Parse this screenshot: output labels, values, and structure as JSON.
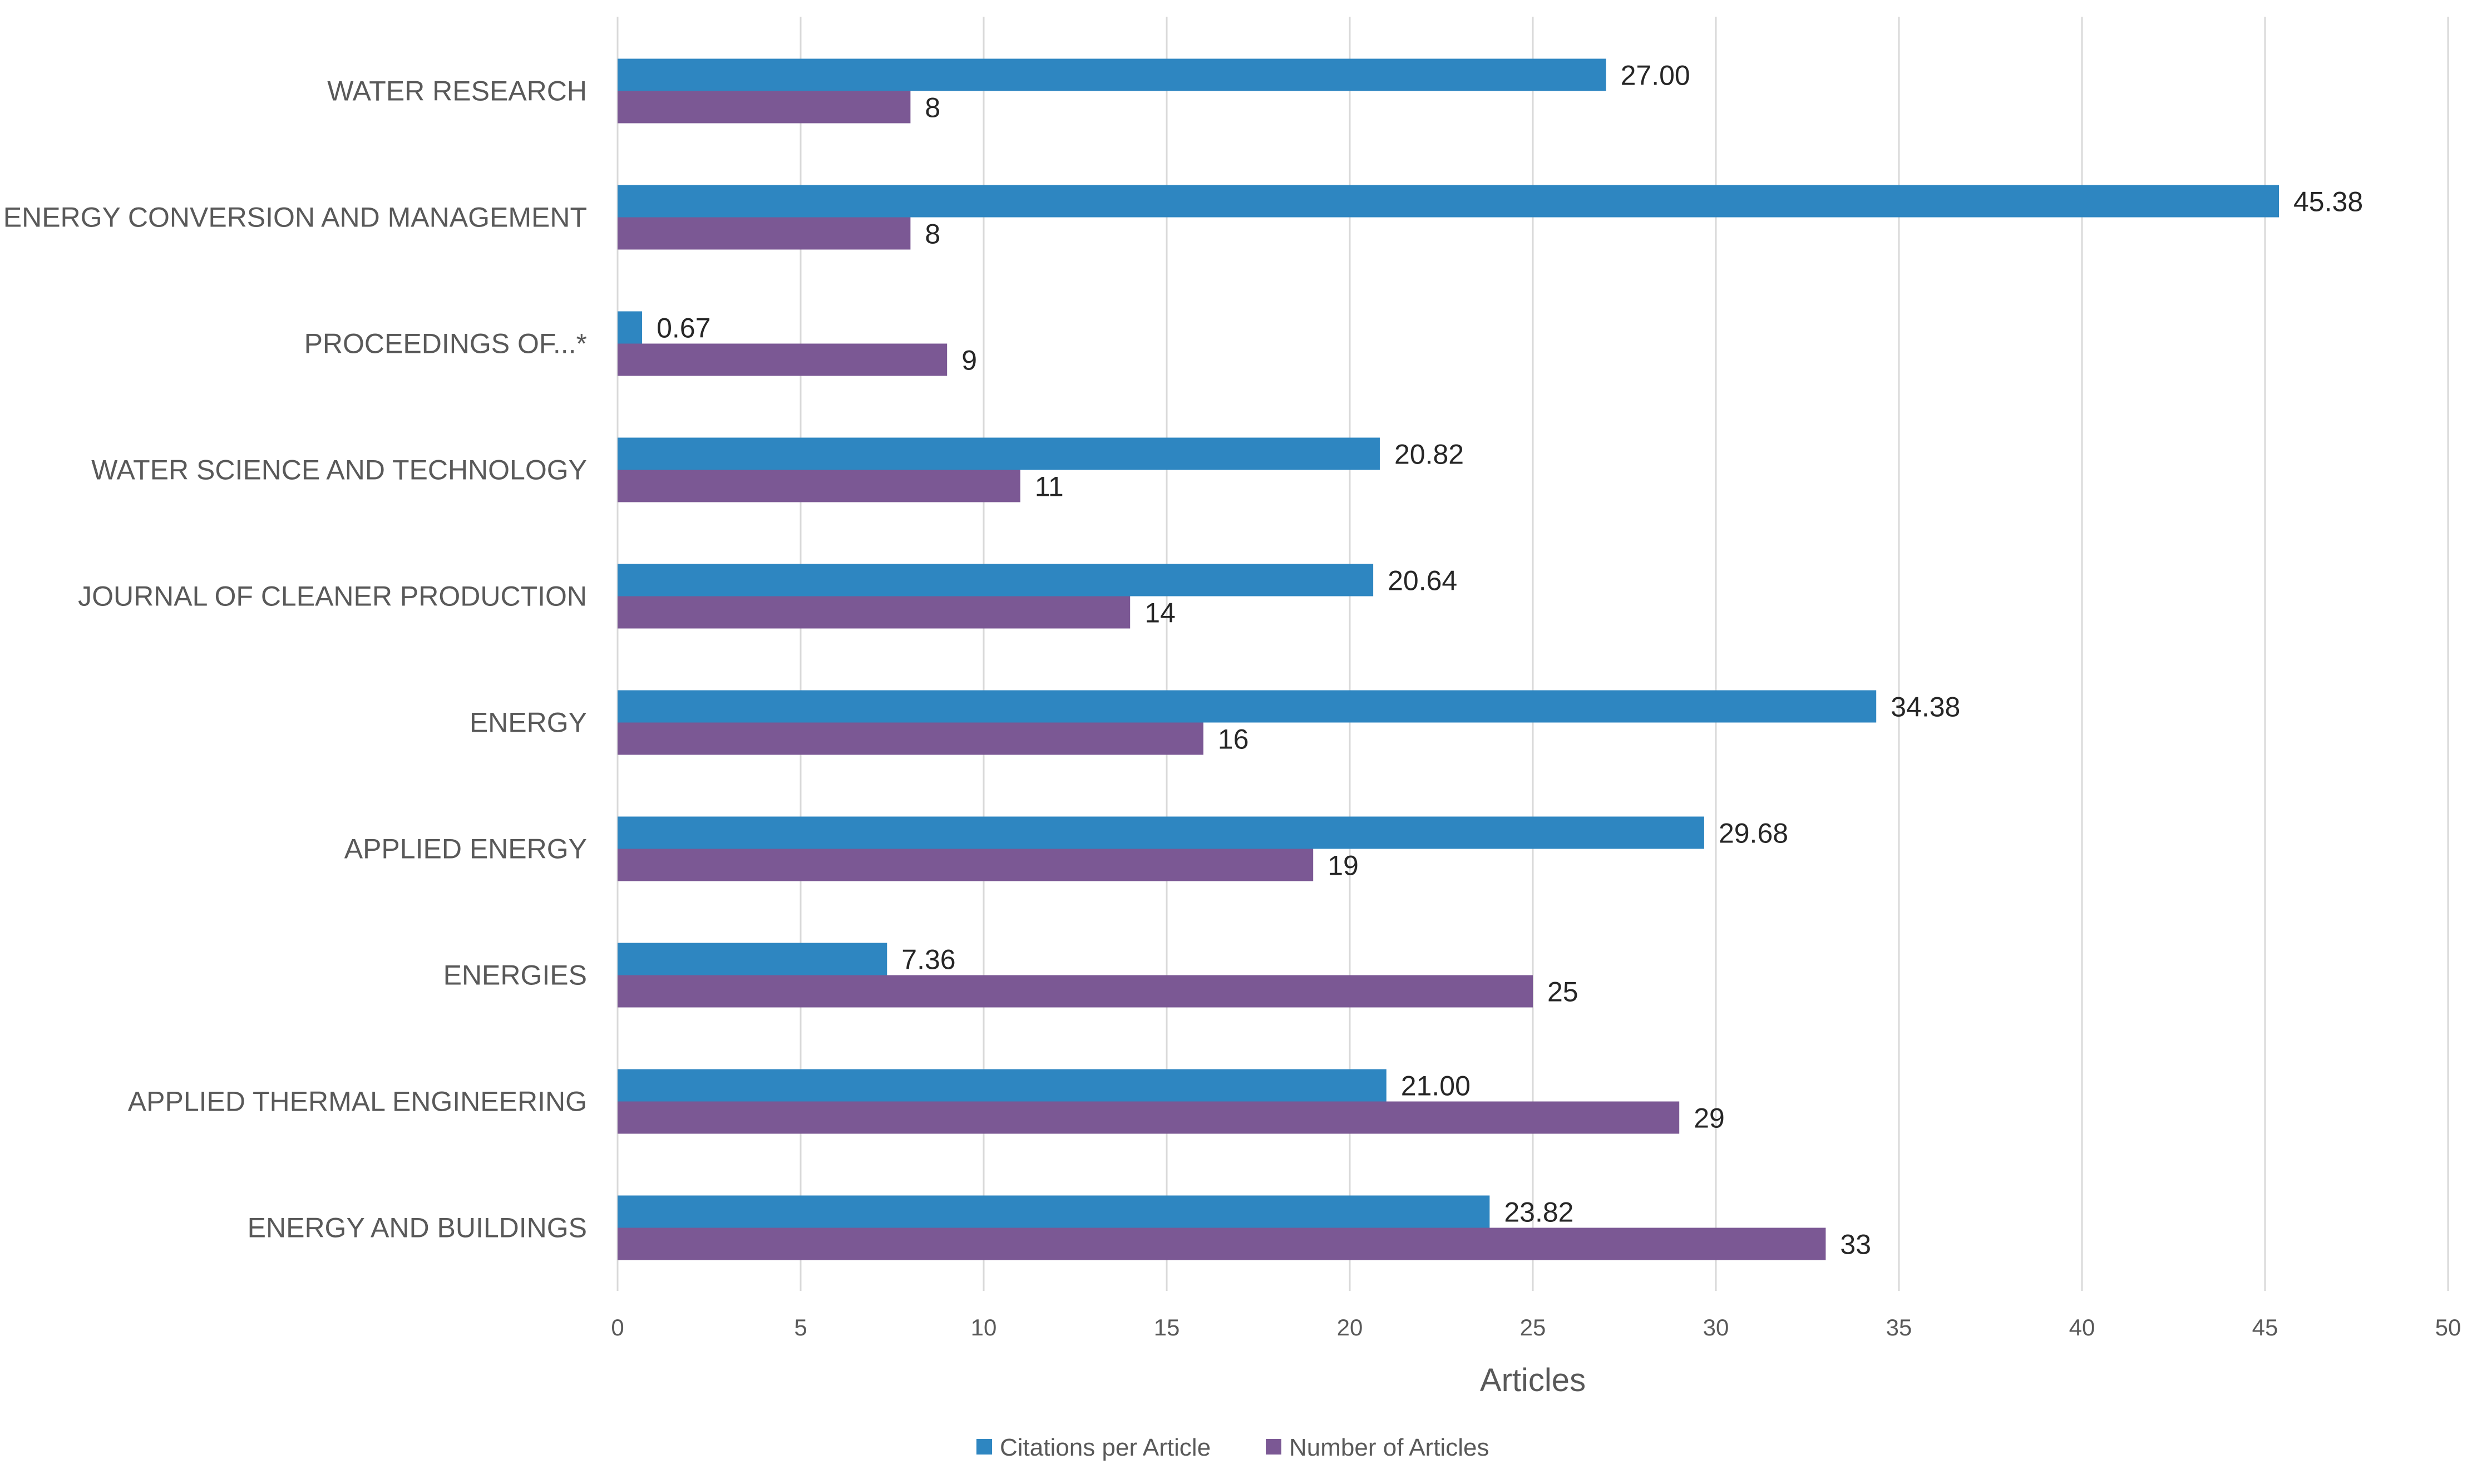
{
  "chart_data": {
    "type": "bar",
    "orientation": "horizontal",
    "title": "",
    "xlabel": "Articles",
    "ylabel": "",
    "xlim": [
      0,
      50
    ],
    "x_ticks": [
      0,
      5,
      10,
      15,
      20,
      25,
      30,
      35,
      40,
      45,
      50
    ],
    "grid": "vertical",
    "legend_position": "bottom",
    "categories": [
      "WATER RESEARCH",
      "ENERGY CONVERSION AND MANAGEMENT",
      "PROCEEDINGS OF...*",
      "WATER SCIENCE AND TECHNOLOGY",
      "JOURNAL OF CLEANER PRODUCTION",
      "ENERGY",
      "APPLIED ENERGY",
      "ENERGIES",
      "APPLIED THERMAL ENGINEERING",
      "ENERGY AND BUILDINGS"
    ],
    "series": [
      {
        "name": "Citations per Article",
        "color": "#2e86c1",
        "values": [
          27.0,
          45.38,
          0.67,
          20.82,
          20.64,
          34.38,
          29.68,
          7.36,
          21.0,
          23.82
        ],
        "labels": [
          "27.00",
          "45.38",
          "0.67",
          "20.82",
          "20.64",
          "34.38",
          "29.68",
          "7.36",
          "21.00",
          "23.82"
        ]
      },
      {
        "name": "Number of Articles",
        "color": "#7b5894",
        "values": [
          8,
          8,
          9,
          11,
          14,
          16,
          19,
          25,
          29,
          33
        ],
        "labels": [
          "8",
          "8",
          "9",
          "11",
          "14",
          "16",
          "19",
          "25",
          "29",
          "33"
        ]
      }
    ]
  }
}
